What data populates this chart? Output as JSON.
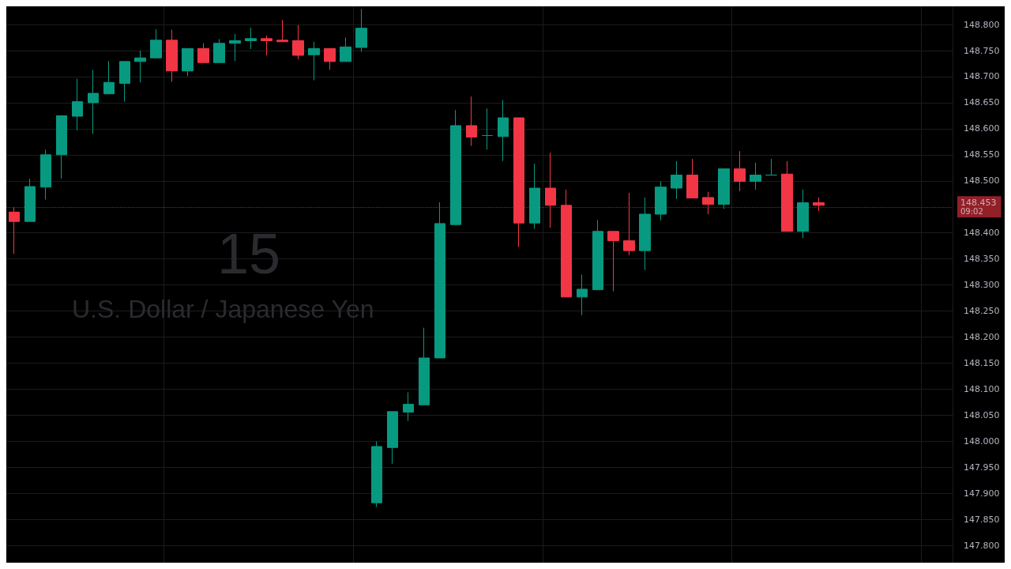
{
  "chart_data": {
    "type": "candlestick",
    "title": "15",
    "subtitle": "U.S. Dollar / Japanese Yen",
    "categories": [
      null,
      null,
      null,
      null,
      null,
      null,
      null,
      null,
      null,
      null,
      null,
      null,
      null,
      null,
      null,
      null,
      null,
      null,
      null,
      null,
      null,
      null,
      null,
      null,
      null,
      null,
      null,
      null,
      null,
      null,
      null,
      null,
      null,
      null,
      null,
      null,
      null,
      null,
      null,
      null,
      null,
      null,
      null,
      null,
      null,
      null,
      null,
      null,
      null,
      null,
      null,
      null,
      null,
      null,
      null,
      null,
      null,
      null,
      null,
      null
    ],
    "ohlc": [
      [
        148.44,
        148.449,
        148.36,
        148.422
      ],
      [
        148.422,
        148.504,
        148.422,
        148.489
      ],
      [
        148.488,
        148.56,
        148.464,
        148.55
      ],
      [
        148.55,
        148.625,
        148.504,
        148.625
      ],
      [
        148.624,
        148.696,
        148.597,
        148.652
      ],
      [
        148.65,
        148.713,
        148.59,
        148.668
      ],
      [
        148.667,
        148.73,
        148.667,
        148.689
      ],
      [
        148.687,
        148.729,
        148.652,
        148.729
      ],
      [
        148.729,
        148.75,
        148.689,
        148.736
      ],
      [
        148.736,
        148.791,
        148.736,
        148.77
      ],
      [
        148.77,
        148.79,
        148.69,
        148.711
      ],
      [
        148.711,
        148.754,
        148.701,
        148.754
      ],
      [
        148.754,
        148.764,
        148.727,
        148.727
      ],
      [
        148.727,
        148.772,
        148.727,
        148.764
      ],
      [
        148.764,
        148.782,
        148.73,
        148.769
      ],
      [
        148.769,
        148.794,
        148.753,
        148.773
      ],
      [
        148.773,
        148.779,
        148.741,
        148.769
      ],
      [
        148.77,
        148.809,
        148.767,
        148.767
      ],
      [
        148.769,
        148.799,
        148.733,
        148.741
      ],
      [
        148.742,
        148.767,
        148.693,
        148.754
      ],
      [
        148.754,
        148.754,
        148.713,
        148.729
      ],
      [
        148.729,
        148.775,
        148.729,
        148.757
      ],
      [
        148.756,
        148.83,
        148.748,
        148.793
      ],
      [
        147.882,
        148.0,
        147.874,
        147.99
      ],
      [
        147.988,
        148.057,
        147.957,
        148.057
      ],
      [
        148.056,
        148.094,
        148.039,
        148.071
      ],
      [
        148.07,
        148.218,
        148.07,
        148.16
      ],
      [
        148.16,
        148.459,
        148.16,
        148.418
      ],
      [
        148.416,
        148.636,
        148.416,
        148.606
      ],
      [
        148.606,
        148.662,
        148.567,
        148.584
      ],
      [
        148.587,
        148.639,
        148.56,
        148.587
      ],
      [
        148.585,
        148.655,
        148.538,
        148.621
      ],
      [
        148.621,
        148.621,
        148.373,
        148.419
      ],
      [
        148.419,
        148.533,
        148.408,
        148.486
      ],
      [
        148.486,
        148.554,
        148.41,
        148.453
      ],
      [
        148.453,
        148.483,
        148.277,
        148.277
      ],
      [
        148.277,
        148.32,
        148.242,
        148.292
      ],
      [
        148.291,
        148.425,
        148.291,
        148.403
      ],
      [
        148.403,
        148.403,
        148.288,
        148.385
      ],
      [
        148.385,
        148.477,
        148.357,
        148.366
      ],
      [
        148.366,
        148.468,
        148.329,
        148.436
      ],
      [
        148.436,
        148.499,
        148.424,
        148.488
      ],
      [
        148.486,
        148.538,
        148.465,
        148.511
      ],
      [
        148.511,
        148.542,
        148.467,
        148.467
      ],
      [
        148.468,
        148.479,
        148.436,
        148.455
      ],
      [
        148.455,
        148.523,
        148.446,
        148.523
      ],
      [
        148.523,
        148.557,
        148.48,
        148.499
      ],
      [
        148.499,
        148.535,
        148.483,
        148.511
      ],
      [
        148.511,
        148.542,
        148.511,
        148.511
      ],
      [
        148.513,
        148.538,
        148.403,
        148.403
      ],
      [
        148.403,
        148.483,
        148.39,
        148.458
      ],
      [
        148.458,
        148.468,
        148.442,
        148.453
      ],
      null,
      null,
      null,
      null,
      null,
      null,
      null,
      null
    ],
    "colors": [
      "#f23645",
      "#089981",
      "#089981",
      "#089981",
      "#089981",
      "#089981",
      "#089981",
      "#089981",
      "#089981",
      "#089981",
      "#f23645",
      "#089981",
      "#f23645",
      "#089981",
      "#089981",
      "#089981",
      "#f23645",
      "#f23645",
      "#f23645",
      "#089981",
      "#f23645",
      "#089981",
      "#089981",
      "#089981",
      "#089981",
      "#089981",
      "#089981",
      "#089981",
      "#089981",
      "#f23645",
      "#089981",
      "#089981",
      "#f23645",
      "#089981",
      "#f23645",
      "#f23645",
      "#089981",
      "#089981",
      "#f23645",
      "#f23645",
      "#089981",
      "#089981",
      "#089981",
      "#f23645",
      "#f23645",
      "#089981",
      "#f23645",
      "#089981",
      "#089981",
      "#f23645",
      "#089981",
      "#f23645",
      null,
      null,
      null,
      null,
      null,
      null,
      null,
      null
    ],
    "ylim": [
      147.767,
      148.835
    ],
    "yticks": [
      {
        "value": 147.8,
        "label": "147.800"
      },
      {
        "value": 147.85,
        "label": "147.850"
      },
      {
        "value": 147.9,
        "label": "147.900"
      },
      {
        "value": 147.95,
        "label": "147.950"
      },
      {
        "value": 148.0,
        "label": "148.000"
      },
      {
        "value": 148.05,
        "label": "148.050"
      },
      {
        "value": 148.1,
        "label": "148.100"
      },
      {
        "value": 148.15,
        "label": "148.150"
      },
      {
        "value": 148.2,
        "label": "148.200"
      },
      {
        "value": 148.25,
        "label": "148.250"
      },
      {
        "value": 148.3,
        "label": "148.300"
      },
      {
        "value": 148.35,
        "label": "148.350"
      },
      {
        "value": 148.4,
        "label": "148.400"
      },
      {
        "value": 148.5,
        "label": "148.500"
      },
      {
        "value": 148.55,
        "label": "148.550"
      },
      {
        "value": 148.6,
        "label": "148.600"
      },
      {
        "value": 148.65,
        "label": "148.650"
      },
      {
        "value": 148.7,
        "label": "148.700"
      },
      {
        "value": 148.75,
        "label": "148.750"
      },
      {
        "value": 148.8,
        "label": "148.800"
      }
    ],
    "ref_lines": [
      {
        "axis": "y",
        "value": 148.453,
        "label": "148.453",
        "color": "#f23645",
        "line_style": "dotted"
      }
    ],
    "annotations": [
      "09:02"
    ],
    "grid": true,
    "tick_labels": "y"
  }
}
